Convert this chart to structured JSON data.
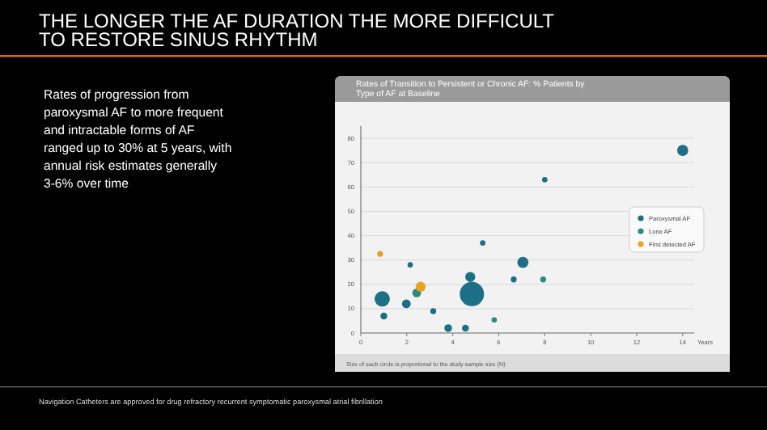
{
  "chart_data": {
    "type": "bubble",
    "title": "THE LONGER THE AF DURATION THE MORE DIFFICULT TO RESTORE  SINUS RHYTHM",
    "subtitle": "Rates of Transition to Persistent or Chronic AF: % Patients by Type of AF at Baseline",
    "xlabel": "Years",
    "annotations": [
      "Rates of progression from paroxysmal AF to more frequent and intractable forms of AF ranged up to 30% at 5 years, with annual risk estimates generally 3-6% over time",
      "Size of each circle is proportional to the study sample size (N)",
      "Navigation Catheters are approved for drug refractory recurrent symptomatic paroxysmal atrial fibrillation"
    ],
    "xlim": [
      0,
      14.5
    ],
    "xticks": [
      0,
      2,
      4,
      6,
      8,
      10,
      12,
      14
    ],
    "ylim": [
      0,
      85
    ],
    "yticks": [
      0,
      10,
      20,
      30,
      40,
      50,
      60,
      70,
      80
    ],
    "grid": "y",
    "legend": "right",
    "marker": "circle",
    "series": [
      {
        "name": "Paroxysmal AF",
        "color": "#1d6f86",
        "x": [
          14,
          8,
          5.3,
          7.05,
          2.15,
          4.76,
          6.65,
          4.83,
          0.93,
          1.98,
          3.15,
          1,
          3.8,
          4.55
        ],
        "values": [
          75,
          63,
          37,
          29,
          28,
          23,
          22,
          16,
          14,
          12,
          9,
          7,
          2,
          2
        ],
        "sizes": [
          0.21,
          0.05,
          0.05,
          0.21,
          0.05,
          0.17,
          0.06,
          1,
          0.4,
          0.13,
          0.06,
          0.08,
          0.1,
          0.08
        ]
      },
      {
        "name": "Lone AF",
        "color": "#2a8c7c",
        "x": [
          7.93,
          2.43,
          5.8
        ],
        "values": [
          22,
          16.5,
          5.4
        ],
        "sizes": [
          0.06,
          0.13,
          0.05
        ]
      },
      {
        "name": "First detected AF",
        "color": "#e8a21e",
        "x": [
          0.84,
          2.6
        ],
        "values": [
          32.5,
          19
        ],
        "sizes": [
          0.06,
          0.17
        ]
      }
    ]
  }
}
